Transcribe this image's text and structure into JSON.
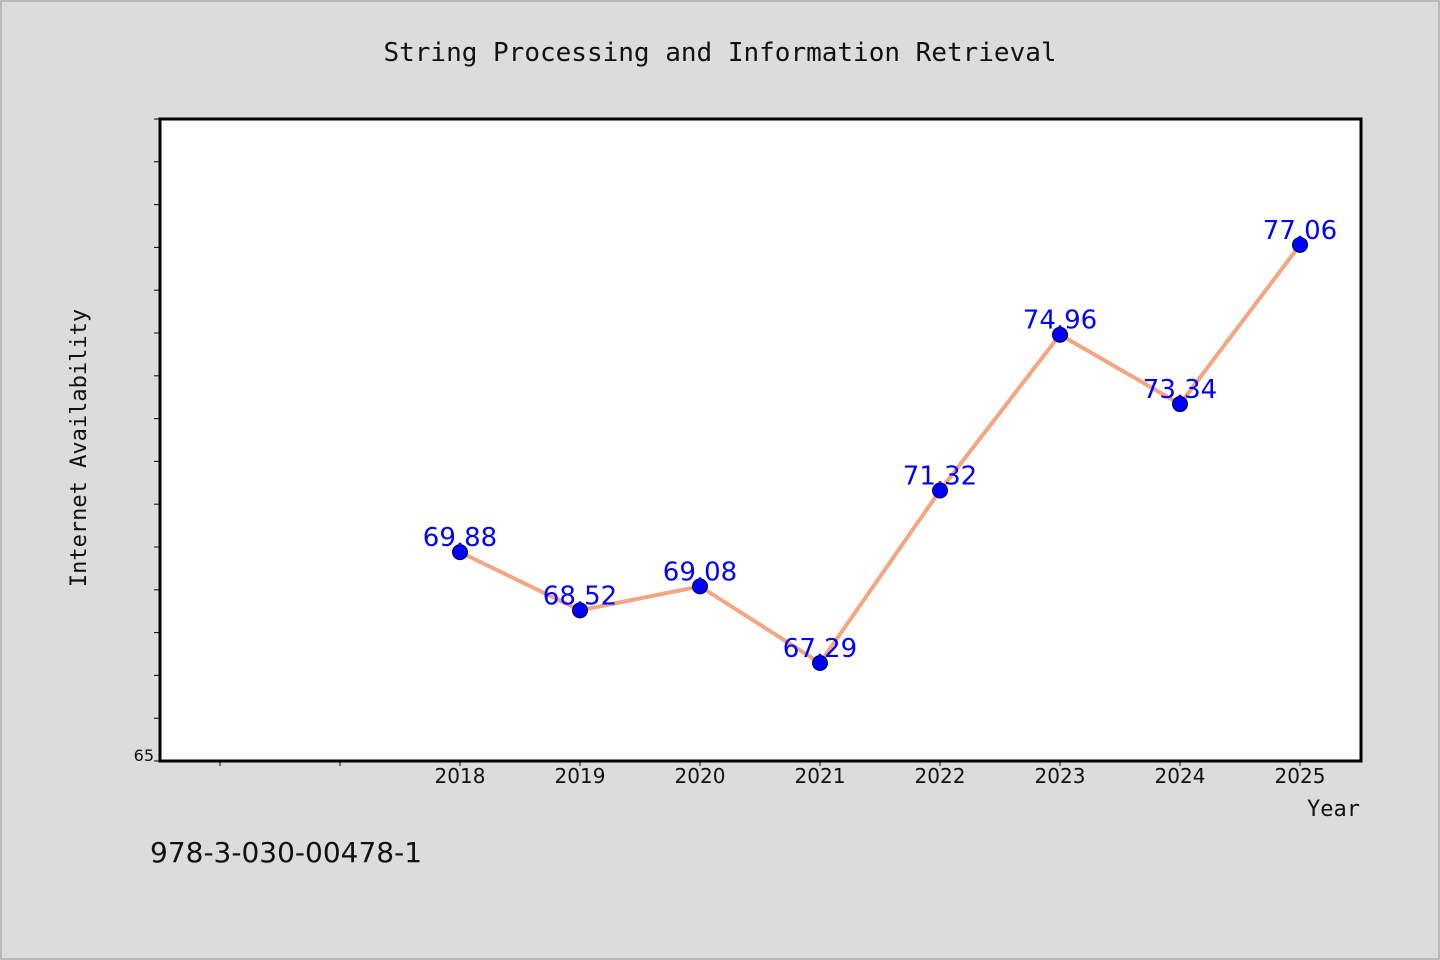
{
  "chart_data": {
    "type": "line",
    "title": "String Processing and Information Retrieval",
    "xlabel": "Year",
    "ylabel": "Internet Availability",
    "x": [
      "2018",
      "2019",
      "2020",
      "2021",
      "2022",
      "2023",
      "2024",
      "2025"
    ],
    "series": [
      {
        "values": [
          69.88,
          68.52,
          69.08,
          67.29,
          71.32,
          74.96,
          73.34,
          77.06
        ]
      }
    ],
    "data_labels": [
      "69.88",
      "68.52",
      "69.08",
      "67.29",
      "71.32",
      "74.96",
      "73.34",
      "77.06"
    ],
    "y_tick_labels": [
      "65"
    ],
    "ylim": [
      65,
      80
    ],
    "grid": false,
    "colors": {
      "line": "#f4a582",
      "marker": "#0000ff",
      "label": "#0000ff",
      "background": "#dcdcdc",
      "plot": "#ffffff"
    }
  },
  "footer": {
    "isbn": "978-3-030-00478-1"
  }
}
